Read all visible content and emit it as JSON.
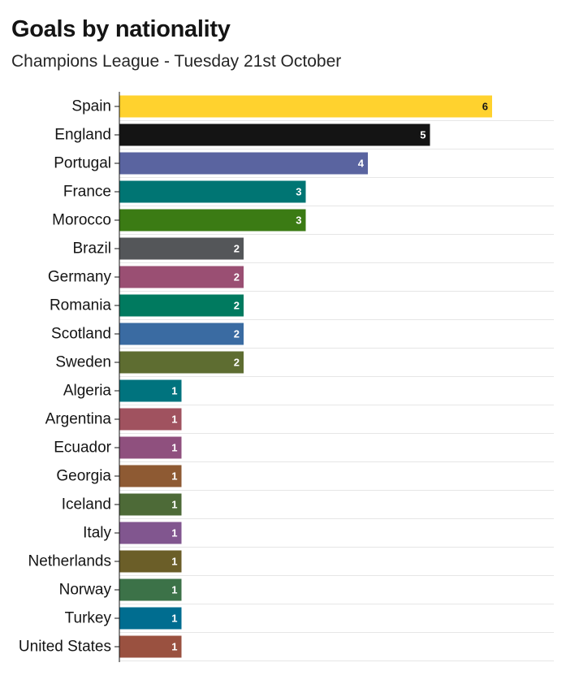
{
  "chart_data": {
    "type": "bar",
    "orientation": "horizontal",
    "title": "Goals by nationality",
    "subtitle": "Champions League - Tuesday 21st October",
    "categories": [
      "Spain",
      "England",
      "Portugal",
      "France",
      "Morocco",
      "Brazil",
      "Germany",
      "Romania",
      "Scotland",
      "Sweden",
      "Algeria",
      "Argentina",
      "Ecuador",
      "Georgia",
      "Iceland",
      "Italy",
      "Netherlands",
      "Norway",
      "Turkey",
      "United States"
    ],
    "values": [
      6,
      5,
      4,
      3,
      3,
      2,
      2,
      2,
      2,
      2,
      1,
      1,
      1,
      1,
      1,
      1,
      1,
      1,
      1,
      1
    ],
    "data_labels": [
      "6",
      "5",
      "4",
      "3",
      "3",
      "2",
      "2",
      "2",
      "2",
      "2",
      "1",
      "1",
      "1",
      "1",
      "1",
      "1",
      "1",
      "1",
      "1",
      "1"
    ],
    "colors": [
      "#FFD22E",
      "#141414",
      "#5A64A0",
      "#007573",
      "#3B7B14",
      "#545659",
      "#9A4F73",
      "#007A5F",
      "#3A6BA2",
      "#5E6D31",
      "#00737E",
      "#A0525F",
      "#8F507E",
      "#8E5A33",
      "#4D6A37",
      "#81568F",
      "#6B5E28",
      "#3C7248",
      "#006D90",
      "#9A5140"
    ],
    "label_colors": [
      "#141414",
      "#ffffff",
      "#ffffff",
      "#ffffff",
      "#ffffff",
      "#ffffff",
      "#ffffff",
      "#ffffff",
      "#ffffff",
      "#ffffff",
      "#ffffff",
      "#ffffff",
      "#ffffff",
      "#ffffff",
      "#ffffff",
      "#ffffff",
      "#ffffff",
      "#ffffff",
      "#ffffff",
      "#ffffff"
    ],
    "xlim": [
      0,
      7
    ],
    "grid": true,
    "legend": "none"
  }
}
